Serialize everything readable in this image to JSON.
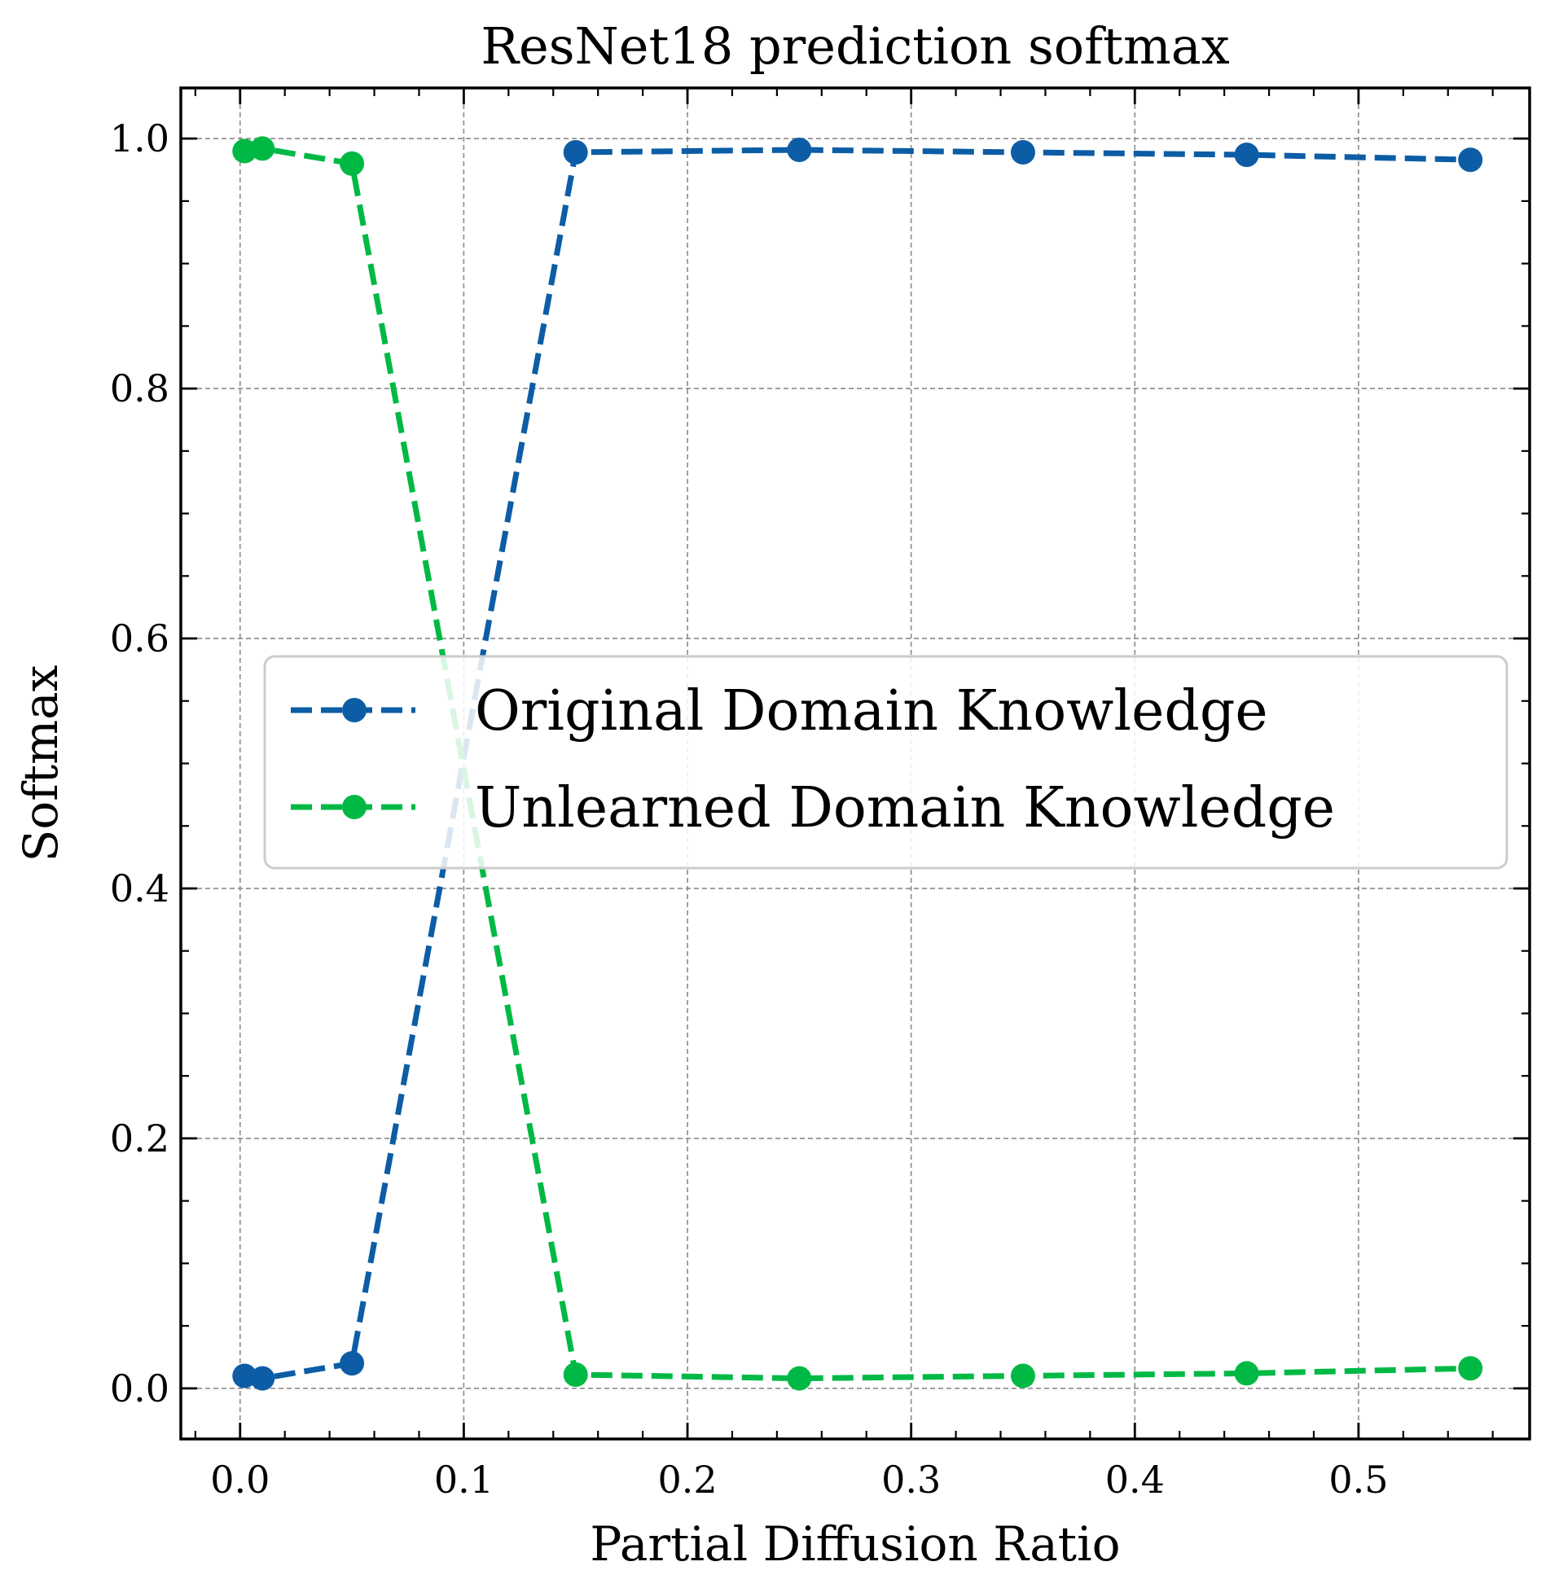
{
  "chart_data": {
    "type": "line",
    "title": "ResNet18 prediction softmax",
    "xlabel": "Partial Diffusion Ratio",
    "ylabel": "Softmax",
    "xlim": [
      -0.0265,
      0.5765
    ],
    "ylim": [
      -0.0405,
      1.0405
    ],
    "x": [
      0.002,
      0.01,
      0.05,
      0.15,
      0.25,
      0.35,
      0.45,
      0.55
    ],
    "series": [
      {
        "name": "Original Domain Knowledge",
        "color": "#0c5da5",
        "values": [
          0.01,
          0.008,
          0.02,
          0.989,
          0.991,
          0.989,
          0.987,
          0.983
        ]
      },
      {
        "name": "Unlearned Domain Knowledge",
        "color": "#00b945",
        "values": [
          0.99,
          0.992,
          0.98,
          0.011,
          0.008,
          0.01,
          0.012,
          0.016
        ]
      }
    ],
    "x_ticks": [
      {
        "value": 0.0,
        "label": "0.0"
      },
      {
        "value": 0.1,
        "label": "0.1"
      },
      {
        "value": 0.2,
        "label": "0.2"
      },
      {
        "value": 0.3,
        "label": "0.3"
      },
      {
        "value": 0.4,
        "label": "0.4"
      },
      {
        "value": 0.5,
        "label": "0.5"
      }
    ],
    "y_ticks": [
      {
        "value": 0.0,
        "label": "0.0"
      },
      {
        "value": 0.2,
        "label": "0.2"
      },
      {
        "value": 0.4,
        "label": "0.4"
      },
      {
        "value": 0.6,
        "label": "0.6"
      },
      {
        "value": 0.8,
        "label": "0.8"
      },
      {
        "value": 1.0,
        "label": "1.0"
      }
    ],
    "x_minor_step": 0.02,
    "y_minor_step": 0.05,
    "grid": true,
    "line_style": "dashed",
    "marker": "circle",
    "legend_position": "center-right"
  }
}
